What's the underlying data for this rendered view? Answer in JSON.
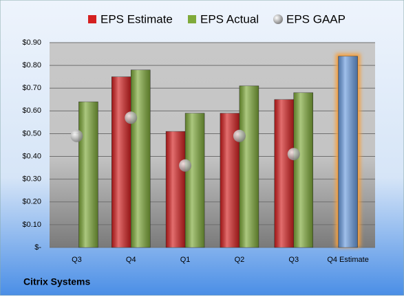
{
  "chart_data": {
    "type": "bar",
    "title": "Citrix Systems",
    "categories": [
      "Q3",
      "Q4",
      "Q1",
      "Q2",
      "Q3",
      "Q4 Estimate"
    ],
    "series": [
      {
        "name": "EPS Estimate",
        "color": "#d42020",
        "values": [
          null,
          0.75,
          0.51,
          0.59,
          0.65,
          0.84
        ]
      },
      {
        "name": "EPS Actual",
        "color": "#7faa3a",
        "values": [
          0.64,
          0.78,
          0.59,
          0.71,
          0.68,
          null
        ]
      },
      {
        "name": "EPS GAAP",
        "color": "#a8a8a8",
        "marker": "circle",
        "values": [
          0.49,
          0.57,
          0.36,
          0.49,
          0.41,
          null
        ]
      }
    ],
    "highlight": {
      "series": 0,
      "index": 5,
      "color": "#6b9de0",
      "glow": "#f5a040"
    },
    "ylim": [
      0,
      0.9
    ],
    "yticks": [
      {
        "value": 0,
        "label": "$-"
      },
      {
        "value": 0.1,
        "label": "$0.10"
      },
      {
        "value": 0.2,
        "label": "$0.20"
      },
      {
        "value": 0.3,
        "label": "$0.30"
      },
      {
        "value": 0.4,
        "label": "$0.40"
      },
      {
        "value": 0.5,
        "label": "$0.50"
      },
      {
        "value": 0.6,
        "label": "$0.60"
      },
      {
        "value": 0.7,
        "label": "$0.70"
      },
      {
        "value": 0.8,
        "label": "$0.80"
      },
      {
        "value": 0.9,
        "label": "$0.90"
      }
    ],
    "grid": true
  }
}
